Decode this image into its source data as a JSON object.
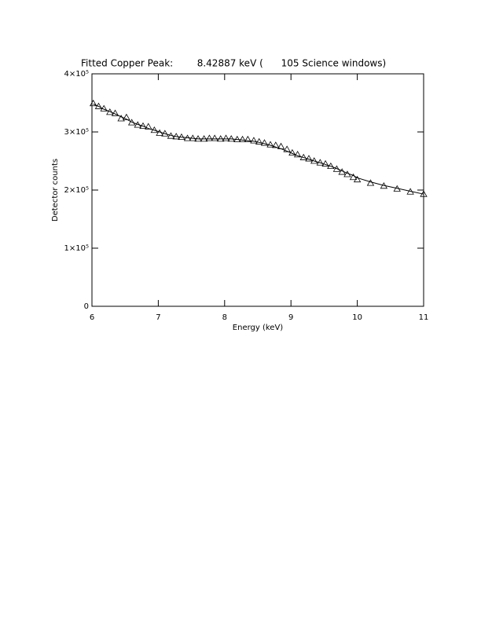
{
  "chart_data": {
    "type": "scatter",
    "title": "Fitted Copper Peak:        8.42887 keV (      105 Science windows)",
    "x_label": "Energy (keV)",
    "y_label": "Detector counts",
    "x": [
      6.02,
      6.1,
      6.18,
      6.27,
      6.35,
      6.44,
      6.52,
      6.6,
      6.69,
      6.77,
      6.85,
      6.94,
      7.02,
      7.1,
      7.19,
      7.27,
      7.35,
      7.44,
      7.52,
      7.6,
      7.69,
      7.77,
      7.85,
      7.94,
      8.02,
      8.1,
      8.19,
      8.27,
      8.35,
      8.44,
      8.52,
      8.6,
      8.69,
      8.77,
      8.85,
      8.94,
      9.02,
      9.1,
      9.19,
      9.27,
      9.35,
      9.44,
      9.52,
      9.6,
      9.69,
      9.77,
      9.85,
      9.94,
      10.0,
      10.2,
      10.4,
      10.6,
      10.8,
      11.0
    ],
    "series": [
      {
        "marker": "triangle",
        "color": "#000000",
        "values": [
          349000,
          344000,
          340000,
          334000,
          332000,
          323000,
          325000,
          316000,
          312000,
          310000,
          309000,
          303000,
          298000,
          297000,
          293000,
          292000,
          291000,
          289000,
          289000,
          288000,
          288000,
          289000,
          289000,
          288000,
          289000,
          288000,
          287000,
          287000,
          287000,
          285000,
          283000,
          281000,
          278000,
          277000,
          275000,
          270000,
          264000,
          261000,
          256000,
          254000,
          250000,
          247000,
          245000,
          241000,
          236000,
          231000,
          227000,
          222000,
          218000,
          212000,
          207000,
          202000,
          197000,
          193000
        ]
      },
      {
        "marker": "line",
        "color": "#000000",
        "values": [
          348000,
          344000,
          339000,
          335000,
          331000,
          326000,
          322000,
          317000,
          313000,
          310000,
          306000,
          303000,
          300000,
          297000,
          294000,
          292000,
          291000,
          290000,
          289000,
          288000,
          288000,
          288000,
          288000,
          288000,
          288000,
          288000,
          287000,
          286000,
          285000,
          284000,
          282000,
          280000,
          277000,
          274000,
          271000,
          267000,
          263000,
          259000,
          256000,
          253000,
          250000,
          247000,
          244000,
          241000,
          237000,
          233000,
          229000,
          225000,
          221000,
          214000,
          208000,
          203000,
          198000,
          193000
        ]
      }
    ],
    "xlim": [
      6,
      11
    ],
    "xticks": [
      6,
      7,
      8,
      9,
      10,
      11
    ],
    "ylim": [
      0,
      400000
    ],
    "yticks": [
      0,
      {
        "value": 100000,
        "label": "1×10⁵"
      },
      {
        "value": 200000,
        "label": "2×10⁵"
      },
      {
        "value": 300000,
        "label": "3×10⁵"
      },
      {
        "value": 400000,
        "label": "4×10⁵"
      }
    ]
  }
}
